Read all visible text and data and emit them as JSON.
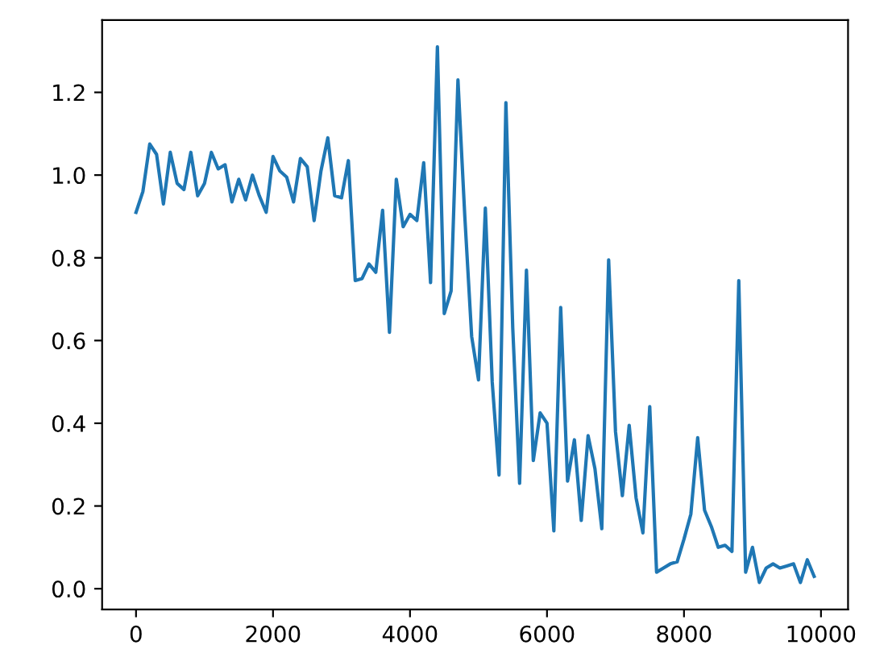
{
  "chart_data": {
    "type": "line",
    "x": [
      0,
      100,
      200,
      300,
      400,
      500,
      600,
      700,
      800,
      900,
      1000,
      1100,
      1200,
      1300,
      1400,
      1500,
      1600,
      1700,
      1800,
      1900,
      2000,
      2100,
      2200,
      2300,
      2400,
      2500,
      2600,
      2700,
      2800,
      2900,
      3000,
      3100,
      3200,
      3300,
      3400,
      3500,
      3600,
      3700,
      3800,
      3900,
      4000,
      4100,
      4200,
      4300,
      4400,
      4500,
      4600,
      4700,
      4800,
      4900,
      5000,
      5100,
      5200,
      5300,
      5400,
      5500,
      5600,
      5700,
      5800,
      5900,
      6000,
      6100,
      6200,
      6300,
      6400,
      6500,
      6600,
      6700,
      6800,
      6900,
      7000,
      7100,
      7200,
      7300,
      7400,
      7500,
      7600,
      7700,
      7800,
      7900,
      8000,
      8100,
      8200,
      8300,
      8400,
      8500,
      8600,
      8700,
      8800,
      8900,
      9000,
      9100,
      9200,
      9300,
      9400,
      9500,
      9600,
      9700,
      9800,
      9900
    ],
    "series": [
      {
        "color": "#1f77b4",
        "values": [
          0.91,
          0.96,
          1.075,
          1.05,
          0.93,
          1.055,
          0.98,
          0.965,
          1.055,
          0.95,
          0.98,
          1.055,
          1.015,
          1.025,
          0.935,
          0.99,
          0.94,
          1.0,
          0.95,
          0.91,
          1.045,
          1.01,
          0.995,
          0.935,
          1.04,
          1.02,
          0.89,
          1.01,
          1.09,
          0.95,
          0.945,
          1.035,
          0.745,
          0.75,
          0.785,
          0.765,
          0.915,
          0.62,
          0.99,
          0.875,
          0.905,
          0.89,
          1.03,
          0.74,
          1.31,
          0.665,
          0.72,
          1.23,
          0.9,
          0.61,
          0.505,
          0.92,
          0.5,
          0.275,
          1.175,
          0.63,
          0.255,
          0.77,
          0.31,
          0.425,
          0.4,
          0.14,
          0.68,
          0.26,
          0.36,
          0.165,
          0.37,
          0.29,
          0.145,
          0.795,
          0.38,
          0.225,
          0.395,
          0.22,
          0.135,
          0.44,
          0.04,
          0.05,
          0.06,
          0.065,
          0.12,
          0.18,
          0.365,
          0.19,
          0.15,
          0.1,
          0.105,
          0.09,
          0.745,
          0.04,
          0.1,
          0.015,
          0.05,
          0.06,
          0.05,
          0.055,
          0.06,
          0.015,
          0.07,
          0.03
        ]
      }
    ],
    "xlim": [
      -495,
      10395
    ],
    "ylim": [
      -0.05,
      1.375
    ],
    "xticks": [
      0,
      2000,
      4000,
      6000,
      8000,
      10000
    ],
    "yticks": [
      {
        "value": 0,
        "label": "0.0"
      },
      {
        "value": 0.2,
        "label": "0.2"
      },
      {
        "value": 0.4,
        "label": "0.4"
      },
      {
        "value": 0.6,
        "label": "0.6"
      },
      {
        "value": 0.8,
        "label": "0.8"
      },
      {
        "value": 1.0,
        "label": "1.0"
      },
      {
        "value": 1.2,
        "label": "1.2"
      }
    ],
    "grid": false,
    "legend": false
  }
}
